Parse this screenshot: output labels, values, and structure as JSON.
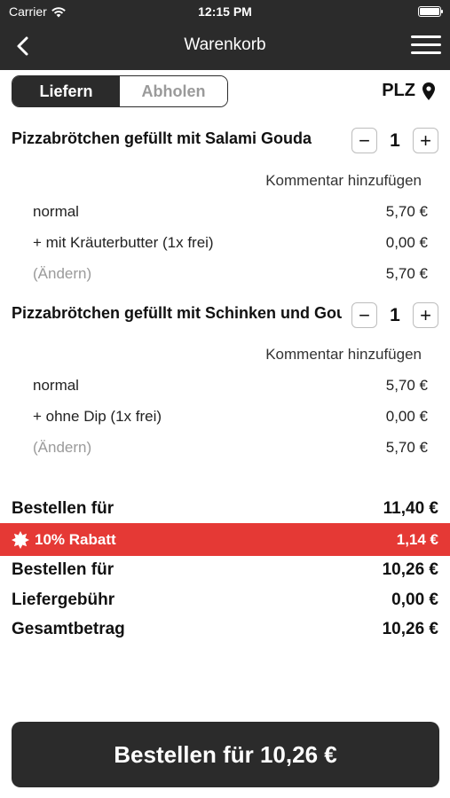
{
  "status_bar": {
    "carrier": "Carrier",
    "time": "12:15 PM"
  },
  "nav": {
    "title": "Warenkorb"
  },
  "tabs": {
    "deliver": "Liefern",
    "pickup": "Abholen",
    "active": "Liefern"
  },
  "postcode": {
    "label": "PLZ"
  },
  "items": [
    {
      "title": "Pizzabrötchen gefüllt mit Salami Gouda",
      "quantity": "1",
      "comment_label": "Kommentar hinzufügen",
      "lines": [
        {
          "label": "normal",
          "price": "5,70 €"
        },
        {
          "label": "+ mit Kräuterbutter (1x frei)",
          "price": "0,00 €"
        },
        {
          "label": "(Ändern)",
          "price": "5,70 €"
        }
      ]
    },
    {
      "title": "Pizzabrötchen gefüllt mit Schinken und Gouda",
      "quantity": "1",
      "comment_label": "Kommentar hinzufügen",
      "lines": [
        {
          "label": "normal",
          "price": "5,70 €"
        },
        {
          "label": "+ ohne Dip (1x frei)",
          "price": "0,00 €"
        },
        {
          "label": "(Ändern)",
          "price": "5,70 €"
        }
      ]
    }
  ],
  "summary": {
    "subtotal": {
      "label": "Bestellen für",
      "value": "11,40 €"
    },
    "discount": {
      "label": "10% Rabatt",
      "value": "1,14 €"
    },
    "after_discount": {
      "label": "Bestellen für",
      "value": "10,26 €"
    },
    "delivery_fee": {
      "label": "Liefergebühr",
      "value": "0,00 €"
    },
    "total": {
      "label": "Gesamtbetrag",
      "value": "10,26 €"
    }
  },
  "order_button": {
    "label": "Bestellen für 10,26 €"
  },
  "colors": {
    "dark": "#2b2b2b",
    "discount": "#e53935",
    "muted": "#9a9a9a"
  }
}
